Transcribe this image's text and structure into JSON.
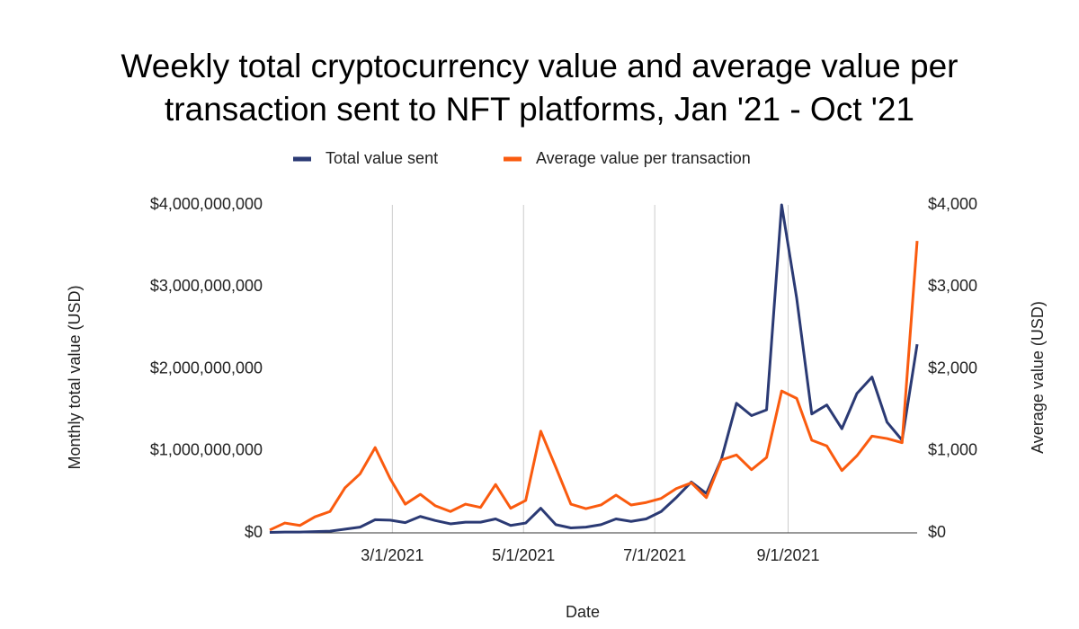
{
  "chart_data": {
    "type": "line",
    "title": "Weekly total cryptocurrency value and average value per transaction sent to NFT platforms, Jan '21 - Oct '21",
    "x_label": "Date",
    "y_label": "Monthly total value (USD)",
    "y2_label": "Average value (USD)",
    "x": [
      "2021-01-03",
      "2021-01-10",
      "2021-01-17",
      "2021-01-24",
      "2021-01-31",
      "2021-02-07",
      "2021-02-14",
      "2021-02-21",
      "2021-02-28",
      "2021-03-07",
      "2021-03-14",
      "2021-03-21",
      "2021-03-28",
      "2021-04-04",
      "2021-04-11",
      "2021-04-18",
      "2021-04-25",
      "2021-05-02",
      "2021-05-09",
      "2021-05-16",
      "2021-05-23",
      "2021-05-30",
      "2021-06-06",
      "2021-06-13",
      "2021-06-20",
      "2021-06-27",
      "2021-07-04",
      "2021-07-11",
      "2021-07-18",
      "2021-07-25",
      "2021-08-01",
      "2021-08-08",
      "2021-08-15",
      "2021-08-22",
      "2021-08-29",
      "2021-09-05",
      "2021-09-12",
      "2021-09-19",
      "2021-09-26",
      "2021-10-03",
      "2021-10-10",
      "2021-10-17",
      "2021-10-24",
      "2021-10-31"
    ],
    "xlim": [
      "2021-01-03",
      "2021-10-31"
    ],
    "xticks": [
      {
        "value": "2021-03-01",
        "label": "3/1/2021"
      },
      {
        "value": "2021-05-01",
        "label": "5/1/2021"
      },
      {
        "value": "2021-07-01",
        "label": "7/1/2021"
      },
      {
        "value": "2021-09-01",
        "label": "9/1/2021"
      }
    ],
    "ylim": [
      0,
      4000000000
    ],
    "yticks": [
      {
        "value": 0,
        "label": "$0"
      },
      {
        "value": 1000000000,
        "label": "$1,000,000,000"
      },
      {
        "value": 2000000000,
        "label": "$2,000,000,000"
      },
      {
        "value": 3000000000,
        "label": "$3,000,000,000"
      },
      {
        "value": 4000000000,
        "label": "$4,000,000,000"
      }
    ],
    "y2lim": [
      0,
      4000
    ],
    "y2ticks": [
      {
        "value": 0,
        "label": "$0"
      },
      {
        "value": 1000,
        "label": "$1,000"
      },
      {
        "value": 2000,
        "label": "$2,000"
      },
      {
        "value": 3000,
        "label": "$3,000"
      },
      {
        "value": 4000,
        "label": "$4,000"
      }
    ],
    "grid": "x",
    "legend": "top",
    "series": [
      {
        "name": "Total value sent",
        "color": "#2b3a74",
        "values": [
          5000000,
          10000000,
          10000000,
          15000000,
          20000000,
          45000000,
          70000000,
          160000000,
          155000000,
          125000000,
          200000000,
          150000000,
          110000000,
          130000000,
          130000000,
          170000000,
          90000000,
          120000000,
          300000000,
          100000000,
          60000000,
          70000000,
          100000000,
          170000000,
          140000000,
          170000000,
          260000000,
          430000000,
          620000000,
          480000000,
          900000000,
          1580000000,
          1430000000,
          1500000000,
          4000000000,
          2860000000,
          1450000000,
          1560000000,
          1270000000,
          1700000000,
          1900000000,
          1350000000,
          1130000000,
          2300000000
        ]
      },
      {
        "name": "Average value per transaction",
        "color": "#fa5b0f",
        "axis": "y2",
        "values": [
          35,
          120,
          90,
          195,
          260,
          550,
          720,
          1040,
          660,
          350,
          470,
          330,
          260,
          350,
          310,
          590,
          300,
          395,
          1240,
          800,
          350,
          295,
          340,
          460,
          340,
          370,
          420,
          540,
          610,
          430,
          890,
          950,
          770,
          920,
          1730,
          1640,
          1130,
          1060,
          760,
          940,
          1180,
          1150,
          1100,
          3560
        ]
      }
    ]
  }
}
